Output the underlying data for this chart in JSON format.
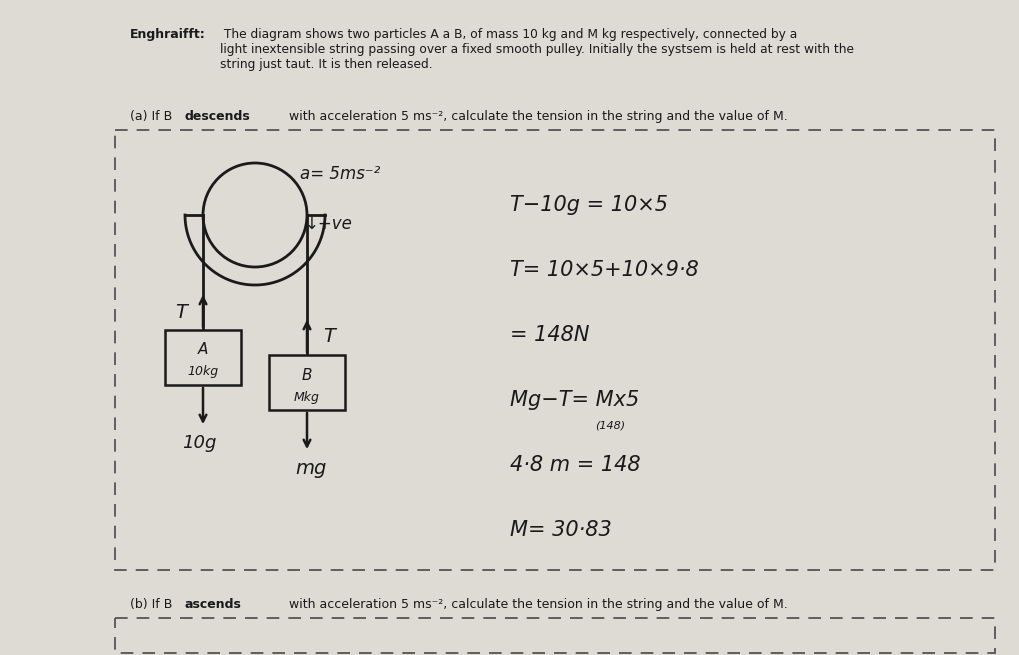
{
  "bg_color": "#ccc8c0",
  "paper_color": "#dedad4",
  "title_bold": "Enghraifft:",
  "title_rest": " The diagram shows two particles A a B, of mass 10 kg and M kg respectively, connected by a\nlight inextensible string passing over a fixed smooth pulley. Initially the systsem is held at rest with the\nstring just taut. It is then released.",
  "part_a_pre": "(a) If B ",
  "part_a_bold": "descends",
  "part_a_post": " with acceleration 5 ms⁻², calculate the tension in the string and the value of M.",
  "part_b_pre": "(b) If B ",
  "part_b_bold": "ascends",
  "part_b_post": " with acceleration 5 ms⁻², calculate the tension in the string and the value of M.",
  "accel_label": "a= 5ms⁻²",
  "ve_label": "↓+ve",
  "eq1": "T−10g = 10×5",
  "eq2": "T= 10×5+10×9·8",
  "eq3": "= 148N",
  "eq4": "Mg−T= Mx5",
  "eq4_sub": "(148)",
  "eq5": "4·8 m = 148",
  "eq6": "M= 30·83",
  "weight_a": "10g",
  "weight_b": "mg",
  "T_label": "T",
  "block_a_top": "A",
  "block_a_bot": "10kg",
  "block_b_top": "B",
  "block_b_bot": "Mkg"
}
